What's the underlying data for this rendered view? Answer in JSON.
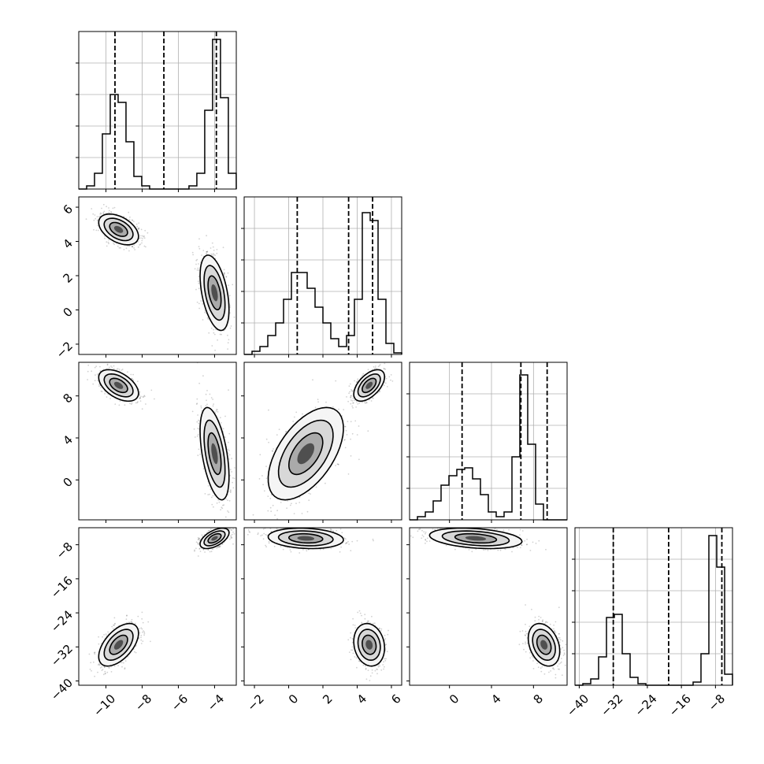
{
  "chart_data": {
    "type": "corner",
    "title": "",
    "grid": true,
    "parameters": [
      {
        "name": "",
        "range": [
          -11.5,
          -2.8
        ],
        "quantiles": [
          -9.5,
          -6.8,
          -3.9
        ],
        "ticks": [
          -10,
          -8,
          -6,
          -4
        ],
        "tick_labels": [
          "−10",
          "−8",
          "−6",
          "−4"
        ],
        "hist": {
          "edges_start": -11.5,
          "bin_width": 0.4348,
          "density": [
            0,
            0.02,
            0.1,
            0.35,
            0.6,
            0.55,
            0.3,
            0.08,
            0.02,
            0,
            0,
            0,
            0,
            0,
            0.02,
            0.1,
            0.5,
            0.95,
            0.58,
            0.1
          ]
        }
      },
      {
        "name": "",
        "range": [
          -2.6,
          6.6
        ],
        "quantiles": [
          0.5,
          3.5,
          4.9
        ],
        "ticks": [
          -2,
          0,
          2,
          4,
          6
        ],
        "tick_labels": [
          "−2",
          "0",
          "2",
          "4",
          "6"
        ],
        "hist": {
          "edges_start": -2.6,
          "bin_width": 0.46,
          "density": [
            0,
            0.02,
            0.05,
            0.12,
            0.2,
            0.35,
            0.52,
            0.52,
            0.42,
            0.3,
            0.2,
            0.1,
            0.05,
            0.12,
            0.35,
            0.9,
            0.85,
            0.35,
            0.07,
            0.01
          ]
        }
      },
      {
        "name": "",
        "range": [
          -3.8,
          11.2
        ],
        "quantiles": [
          1.2,
          6.8,
          9.3
        ],
        "ticks": [
          0,
          4,
          8
        ],
        "tick_labels": [
          "0",
          "4",
          "8"
        ],
        "hist": {
          "edges_start": -3.8,
          "bin_width": 0.75,
          "density": [
            0,
            0.02,
            0.05,
            0.12,
            0.22,
            0.28,
            0.32,
            0.33,
            0.26,
            0.16,
            0.05,
            0.02,
            0.05,
            0.4,
            0.92,
            0.48,
            0.1,
            0,
            0,
            0
          ]
        }
      },
      {
        "name": "",
        "range": [
          -41,
          -4
        ],
        "quantiles": [
          -32,
          -19,
          -6.5
        ],
        "ticks": [
          -40,
          -32,
          -24,
          -16,
          -8
        ],
        "tick_labels": [
          "−40",
          "−32",
          "−24",
          "−16",
          "−8"
        ],
        "hist": {
          "edges_start": -41,
          "bin_width": 1.85,
          "density": [
            0,
            0.01,
            0.04,
            0.18,
            0.43,
            0.45,
            0.2,
            0.05,
            0.01,
            0,
            0,
            0,
            0,
            0,
            0,
            0.02,
            0.2,
            0.95,
            0.75,
            0.07
          ]
        }
      }
    ],
    "clusters": [
      {
        "mean": [
          -9.3,
          4.7,
          9.0,
          -31.5
        ],
        "sd": [
          0.55,
          0.45,
          0.75,
          2.5
        ],
        "weight": 0.5
      },
      {
        "mean": [
          -4.0,
          1.0,
          2.5,
          -6.5
        ],
        "sd": [
          0.4,
          1.1,
          2.2,
          1.2
        ],
        "weight": 0.5
      }
    ],
    "corr": [
      [
        0,
        -0.45,
        -0.5,
        0.55
      ],
      [
        0,
        0,
        0.55,
        -0.15
      ],
      [
        0,
        0,
        0,
        -0.3
      ]
    ],
    "hist_yticks_fraction": [
      0.2,
      0.4,
      0.6,
      0.8
    ]
  }
}
